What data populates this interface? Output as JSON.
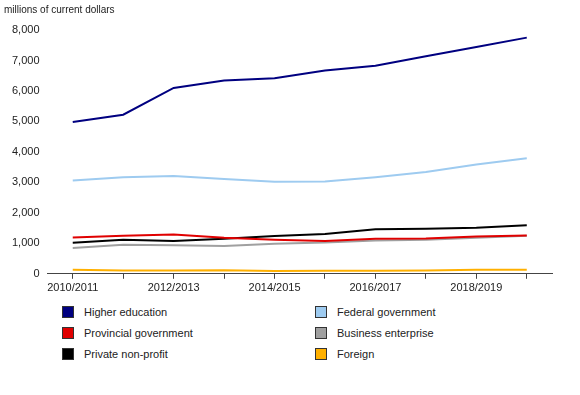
{
  "chart_data": {
    "type": "line",
    "ylabel": "millions of current dollars",
    "categories": [
      "2010/2011",
      null,
      "2012/2013",
      null,
      "2014/2015",
      null,
      "2016/2017",
      null,
      "2018/2019",
      null
    ],
    "series": [
      {
        "name": "Higher education",
        "color": "#000080",
        "values": [
          4980,
          5220,
          6100,
          6340,
          6420,
          6670,
          6830,
          7140,
          7440,
          7750
        ]
      },
      {
        "name": "Federal government",
        "color": "#9ecbf0",
        "values": [
          3060,
          3170,
          3210,
          3110,
          3020,
          3030,
          3170,
          3340,
          3590,
          3790
        ]
      },
      {
        "name": "Provincial government",
        "color": "#e00000",
        "values": [
          1190,
          1250,
          1290,
          1180,
          1120,
          1080,
          1150,
          1160,
          1220,
          1260
        ]
      },
      {
        "name": "Business enterprise",
        "color": "#a0a0a0",
        "values": [
          850,
          950,
          940,
          910,
          990,
          1030,
          1090,
          1120,
          1180,
          1250
        ]
      },
      {
        "name": "Private non-profit",
        "color": "#000000",
        "values": [
          1020,
          1120,
          1080,
          1150,
          1240,
          1310,
          1460,
          1480,
          1510,
          1590
        ]
      },
      {
        "name": "Foreign",
        "color": "#ffb000",
        "values": [
          130,
          110,
          110,
          120,
          90,
          100,
          100,
          110,
          130,
          130
        ]
      }
    ],
    "ylim": [
      0,
      8000
    ],
    "yticks": [
      0,
      {
        "value": 1000,
        "label": "1,000"
      },
      {
        "value": 2000,
        "label": "2,000"
      },
      {
        "value": 3000,
        "label": "3,000"
      },
      {
        "value": 4000,
        "label": "4,000"
      },
      {
        "value": 5000,
        "label": "5,000"
      },
      {
        "value": 6000,
        "label": "6,000"
      },
      {
        "value": 7000,
        "label": "7,000"
      },
      {
        "value": 8000,
        "label": "8,000"
      }
    ],
    "grid": false,
    "legend": "bottom",
    "marker": "none"
  }
}
